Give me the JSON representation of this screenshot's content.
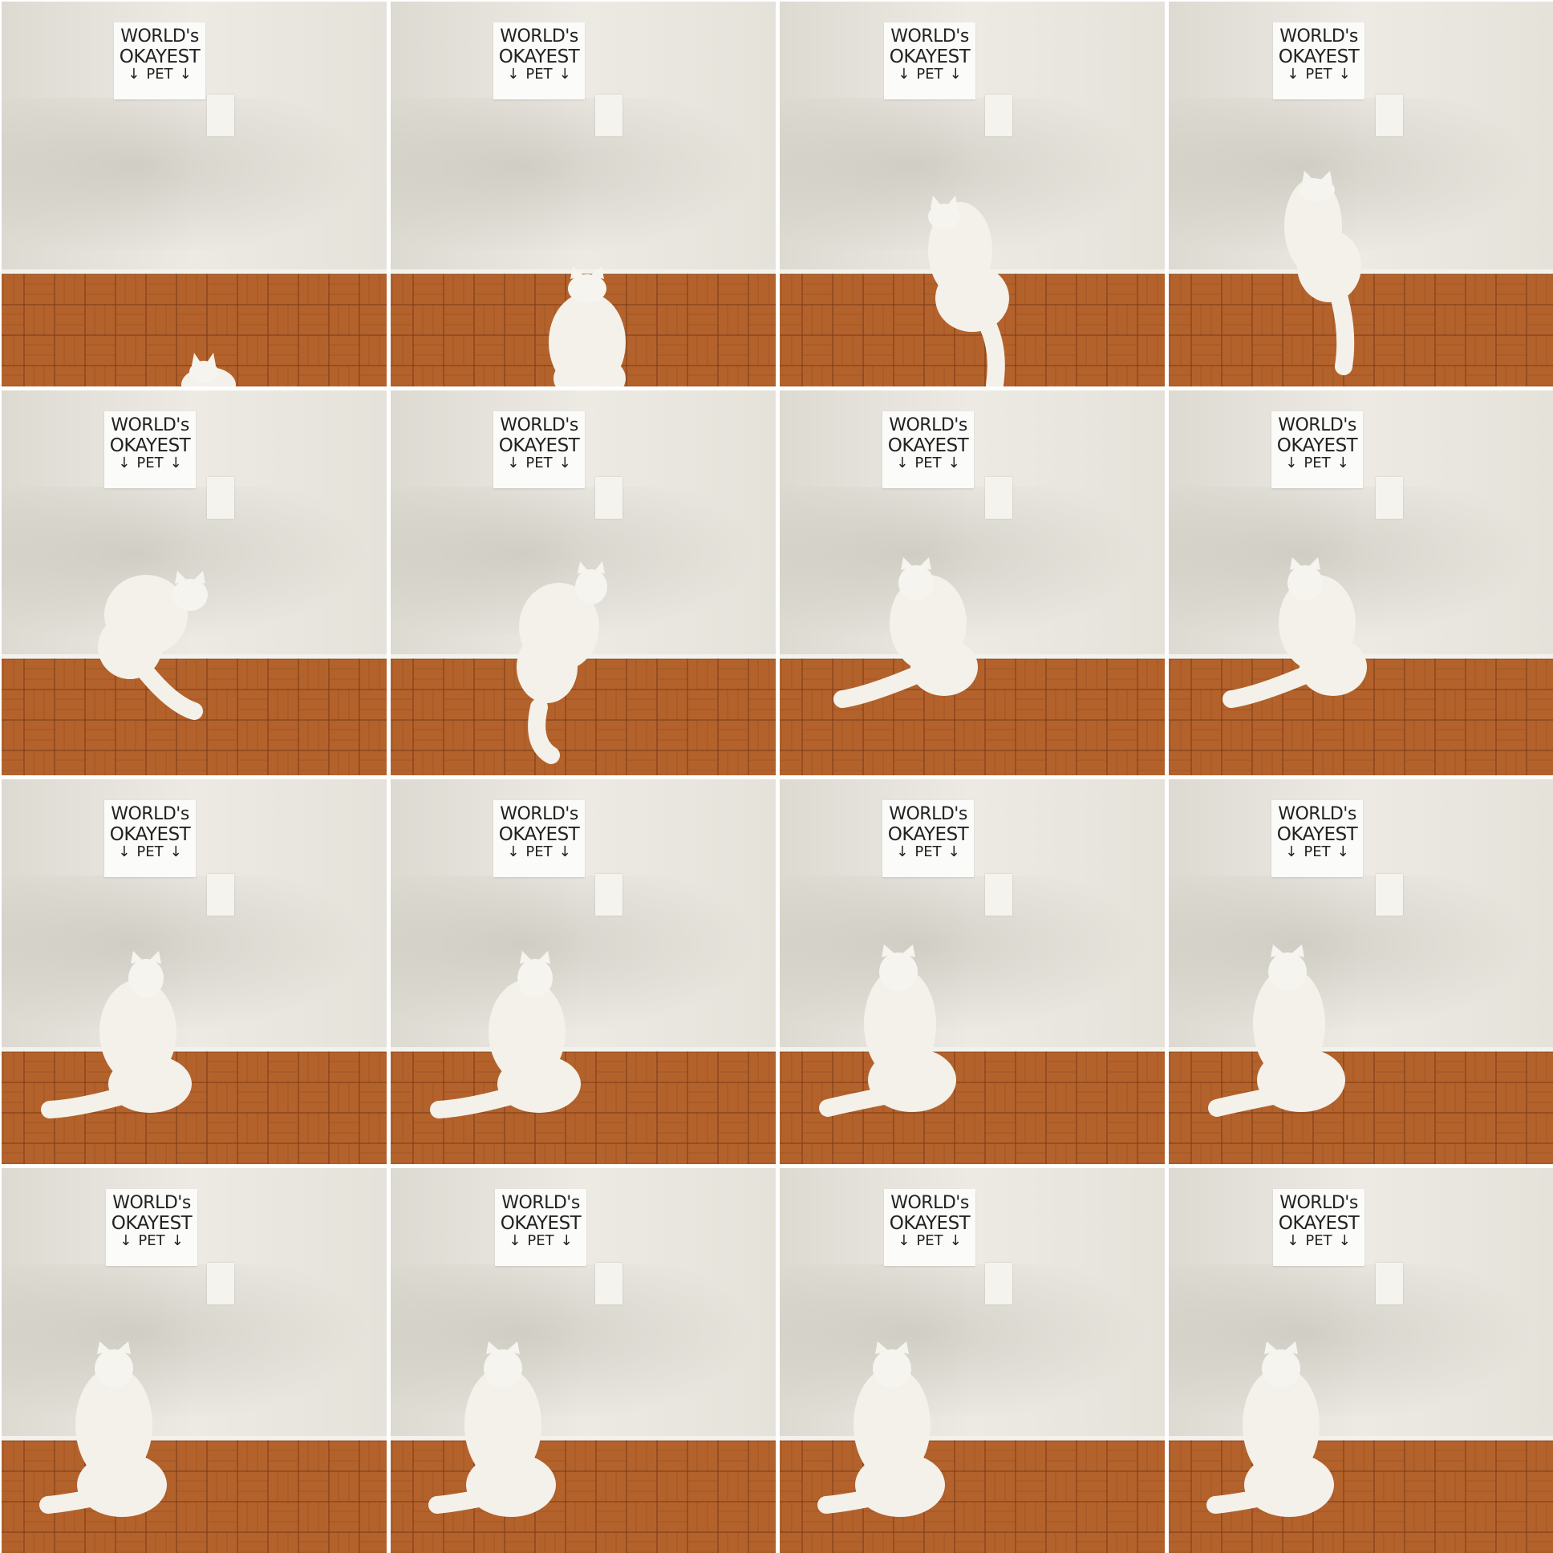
{
  "sign": {
    "line1": "WORLD's",
    "line2": "OKAYEST",
    "line3": "PET",
    "arrow": "↓"
  },
  "colors": {
    "wall": "#e9e7de",
    "floor": "#b4622c",
    "floor_dark": "#8f4a1f",
    "cat": "#f3f1ea"
  },
  "frames": [
    {
      "pose": "entering-bottom"
    },
    {
      "pose": "walking-away"
    },
    {
      "pose": "sniffing-wall"
    },
    {
      "pose": "leaning-on-wall"
    },
    {
      "pose": "turning"
    },
    {
      "pose": "turning-down"
    },
    {
      "pose": "sitting-back"
    },
    {
      "pose": "sitting-back"
    },
    {
      "pose": "slouching"
    },
    {
      "pose": "slouching"
    },
    {
      "pose": "slouching-front"
    },
    {
      "pose": "slouching-front"
    },
    {
      "pose": "sitting-front"
    },
    {
      "pose": "sitting-front"
    },
    {
      "pose": "sitting-front"
    },
    {
      "pose": "sitting-front"
    }
  ]
}
